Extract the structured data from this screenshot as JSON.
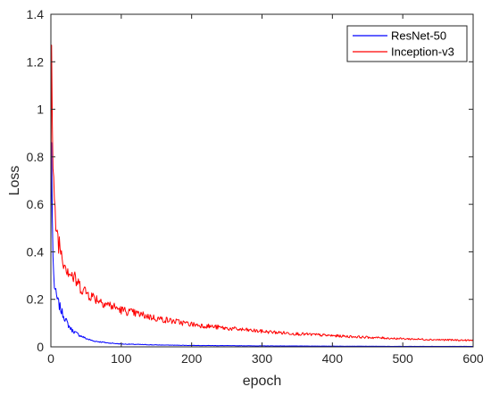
{
  "chart_data": {
    "type": "line",
    "xlabel": "epoch",
    "ylabel": "Loss",
    "xlim": [
      0,
      600
    ],
    "ylim": [
      0,
      1.4
    ],
    "xticks": [
      0,
      100,
      200,
      300,
      400,
      500,
      600
    ],
    "xtick_labels": [
      "0",
      "100",
      "200",
      "300",
      "400",
      "500",
      "600"
    ],
    "yticks": [
      0,
      0.2,
      0.4,
      0.6,
      0.8,
      1.0,
      1.2,
      1.4
    ],
    "ytick_labels": [
      "0",
      "0.2",
      "0.4",
      "0.6",
      "0.8",
      "1",
      "1.2",
      "1.4"
    ],
    "grid": false,
    "legend_position": "top-right",
    "series": [
      {
        "name": "ResNet-50",
        "color": "#0000ff",
        "x": [
          0,
          1,
          2,
          3,
          4,
          5,
          7,
          10,
          15,
          20,
          25,
          30,
          40,
          50,
          60,
          80,
          100,
          150,
          200,
          300,
          400,
          500,
          600
        ],
        "y": [
          0.45,
          0.86,
          0.55,
          0.38,
          0.3,
          0.26,
          0.22,
          0.19,
          0.15,
          0.12,
          0.09,
          0.07,
          0.05,
          0.035,
          0.025,
          0.017,
          0.012,
          0.008,
          0.006,
          0.004,
          0.003,
          0.002,
          0.002
        ]
      },
      {
        "name": "Inception-v3",
        "color": "#ff0000",
        "x": [
          0,
          1,
          2,
          3,
          4,
          5,
          7,
          10,
          15,
          20,
          30,
          40,
          50,
          60,
          80,
          100,
          150,
          200,
          250,
          300,
          350,
          400,
          450,
          500,
          550,
          600
        ],
        "y": [
          0.6,
          1.27,
          0.95,
          0.75,
          0.65,
          0.58,
          0.52,
          0.46,
          0.4,
          0.35,
          0.3,
          0.26,
          0.23,
          0.21,
          0.18,
          0.155,
          0.12,
          0.095,
          0.078,
          0.065,
          0.055,
          0.047,
          0.04,
          0.034,
          0.03,
          0.027
        ]
      }
    ]
  }
}
